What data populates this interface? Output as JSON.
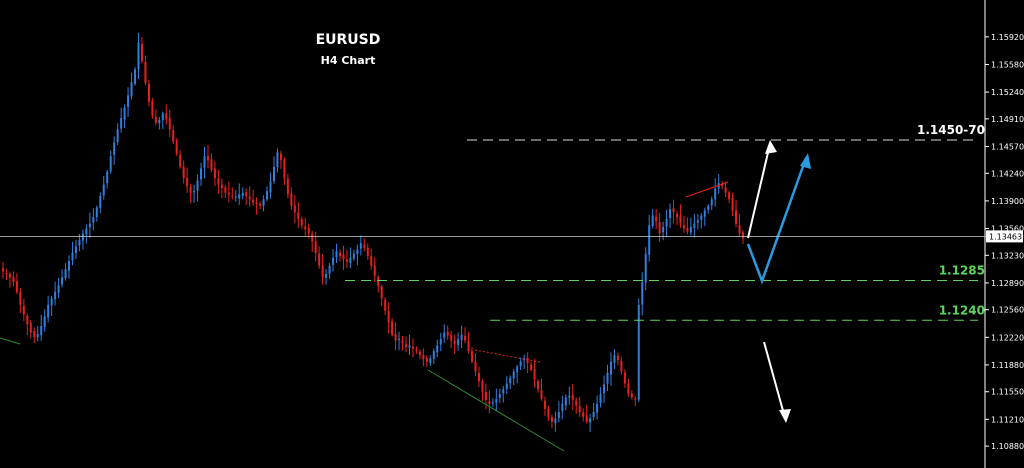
{
  "chart_data": {
    "type": "candlestick",
    "title": "EURUSD",
    "subtitle": "H4 Chart",
    "ylim": [
      1.1066,
      1.163
    ],
    "y_ticks": [
      "1.15920",
      "1.15580",
      "1.15240",
      "1.14910",
      "1.14570",
      "1.14240",
      "1.13900",
      "1.13560",
      "1.13230",
      "1.12890",
      "1.12560",
      "1.12220",
      "1.11880",
      "1.11550",
      "1.11210",
      "1.10880"
    ],
    "current_price": "1.13463",
    "levels": [
      {
        "label": "1.1450-70",
        "value": 1.1465,
        "color": "#d8d8d8"
      },
      {
        "label": "1.1285",
        "value": 1.1292,
        "color": "#5bd65b"
      },
      {
        "label": "1.1240",
        "value": 1.1243,
        "color": "#5bd65b"
      }
    ],
    "colors": {
      "up": "#2f7fe0",
      "down": "#e8201e",
      "wick_up": "#2f7fe0",
      "wick_down": "#e8201e",
      "arrow_white": "#ffffff",
      "arrow_blue": "#2a9be0"
    },
    "closes": [
      1.1303,
      1.13,
      1.1296,
      1.129,
      1.1278,
      1.1262,
      1.125,
      1.1238,
      1.1228,
      1.1222,
      1.1226,
      1.1236,
      1.1248,
      1.1262,
      1.127,
      1.1278,
      1.1286,
      1.1296,
      1.1306,
      1.1316,
      1.1326,
      1.1334,
      1.1342,
      1.135,
      1.1356,
      1.1362,
      1.137,
      1.1382,
      1.1396,
      1.141,
      1.1426,
      1.1445,
      1.1462,
      1.1478,
      1.1492,
      1.1505,
      1.152,
      1.1536,
      1.1552,
      1.1585,
      1.1562,
      1.1535,
      1.1512,
      1.1495,
      1.1486,
      1.149,
      1.1498,
      1.149,
      1.1478,
      1.1463,
      1.1448,
      1.1432,
      1.1418,
      1.1408,
      1.14,
      1.1402,
      1.1415,
      1.143,
      1.1445,
      1.144,
      1.1428,
      1.1418,
      1.141,
      1.1406,
      1.14,
      1.1398,
      1.1396,
      1.1395,
      1.1398,
      1.14,
      1.1396,
      1.1392,
      1.1388,
      1.1386,
      1.1384,
      1.1392,
      1.1402,
      1.1414,
      1.1432,
      1.145,
      1.144,
      1.1418,
      1.1398,
      1.1384,
      1.1376,
      1.1368,
      1.136,
      1.1355,
      1.135,
      1.134,
      1.1326,
      1.131,
      1.1296,
      1.13,
      1.131,
      1.132,
      1.1328,
      1.1322,
      1.1318,
      1.1315,
      1.132,
      1.1325,
      1.133,
      1.1338,
      1.1332,
      1.1322,
      1.131,
      1.1298,
      1.1285,
      1.127,
      1.1255,
      1.124,
      1.1225,
      1.1218,
      1.122,
      1.1215,
      1.121,
      1.1212,
      1.1208,
      1.1205,
      1.12,
      1.1195,
      1.1192,
      1.1196,
      1.1205,
      1.1212,
      1.122,
      1.1228,
      1.1224,
      1.1218,
      1.1214,
      1.122,
      1.1225,
      1.1218,
      1.1205,
      1.1192,
      1.118,
      1.1168,
      1.1155,
      1.1145,
      1.114,
      1.1142,
      1.1146,
      1.1152,
      1.1158,
      1.1165,
      1.1172,
      1.118,
      1.1186,
      1.1192,
      1.1196,
      1.119,
      1.1182,
      1.117,
      1.1158,
      1.1146,
      1.1134,
      1.1124,
      1.1118,
      1.1122,
      1.113,
      1.114,
      1.1148,
      1.115,
      1.1145,
      1.1138,
      1.113,
      1.1124,
      1.1118,
      1.1122,
      1.113,
      1.114,
      1.1152,
      1.1164,
      1.1178,
      1.1192,
      1.12,
      1.1194,
      1.118,
      1.1165,
      1.1152,
      1.1148,
      1.1146,
      1.1262,
      1.129,
      1.1325,
      1.136,
      1.1372,
      1.1365,
      1.135,
      1.1358,
      1.1368,
      1.138,
      1.1376,
      1.137,
      1.1362,
      1.1356,
      1.1352,
      1.1358,
      1.1362,
      1.1366,
      1.1372,
      1.1378,
      1.1384,
      1.1392,
      1.1405,
      1.1412,
      1.1408,
      1.14,
      1.1392,
      1.1378,
      1.1362,
      1.135,
      1.1344
    ]
  }
}
